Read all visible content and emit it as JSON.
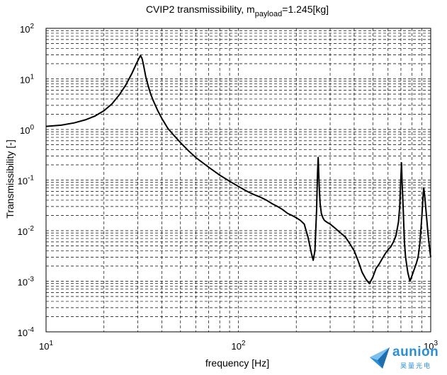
{
  "chart_data": {
    "type": "line",
    "title": "CVIP2 transmissibility, m",
    "title_sub": "payload",
    "title_suffix": "=1.245[kg]",
    "xlabel": "frequency [Hz]",
    "ylabel": "Transmissibility [-]",
    "x_scale": "log",
    "y_scale": "log",
    "xlim": [
      10,
      1000
    ],
    "ylim": [
      0.0001,
      100
    ],
    "grid": "on (major and minor, dashed)",
    "x_tick_labels": [
      {
        "base": "10",
        "exp": "1"
      },
      {
        "base": "10",
        "exp": "2"
      },
      {
        "base": "10",
        "exp": "3"
      }
    ],
    "y_tick_labels": [
      {
        "base": "10",
        "exp": "-4"
      },
      {
        "base": "10",
        "exp": "-3"
      },
      {
        "base": "10",
        "exp": "-2"
      },
      {
        "base": "10",
        "exp": "-1"
      },
      {
        "base": "10",
        "exp": "0"
      },
      {
        "base": "10",
        "exp": "1"
      },
      {
        "base": "10",
        "exp": "2"
      }
    ],
    "series": [
      {
        "color": "#000000",
        "x": [
          10,
          12,
          14,
          16,
          18,
          20,
          22,
          24,
          26,
          28,
          29.5,
          30.5,
          31,
          31.6,
          32.2,
          33,
          34,
          35,
          36,
          38,
          40,
          43,
          46,
          50,
          55,
          60,
          70,
          80,
          90,
          100,
          110,
          120,
          130,
          140,
          150,
          160,
          170,
          180,
          190,
          200,
          210,
          220,
          230,
          240,
          245,
          250,
          255,
          258,
          260,
          263,
          266,
          270,
          275,
          280,
          290,
          300,
          320,
          340,
          360,
          380,
          400,
          420,
          440,
          460,
          480,
          500,
          520,
          540,
          560,
          580,
          600,
          620,
          640,
          660,
          680,
          690,
          700,
          705,
          710,
          720,
          730,
          740,
          760,
          780,
          800,
          820,
          840,
          860,
          880,
          900,
          910,
          920,
          930,
          950,
          970,
          990,
          1000
        ],
        "y": [
          1.15,
          1.22,
          1.35,
          1.55,
          1.85,
          2.35,
          3.2,
          4.8,
          7.6,
          13.0,
          20.0,
          26.0,
          29.0,
          25.0,
          18.0,
          11.0,
          7.2,
          5.0,
          3.8,
          2.4,
          1.65,
          1.05,
          0.78,
          0.55,
          0.38,
          0.28,
          0.18,
          0.125,
          0.095,
          0.075,
          0.061,
          0.052,
          0.046,
          0.04,
          0.034,
          0.03,
          0.026,
          0.022,
          0.02,
          0.018,
          0.016,
          0.0135,
          0.0075,
          0.0035,
          0.0026,
          0.004,
          0.025,
          0.14,
          0.28,
          0.08,
          0.035,
          0.022,
          0.018,
          0.016,
          0.0145,
          0.0135,
          0.011,
          0.009,
          0.0075,
          0.0055,
          0.004,
          0.0025,
          0.0015,
          0.0011,
          0.0009,
          0.0012,
          0.0018,
          0.0022,
          0.0028,
          0.0035,
          0.0042,
          0.0048,
          0.006,
          0.008,
          0.015,
          0.03,
          0.12,
          0.22,
          0.09,
          0.025,
          0.006,
          0.003,
          0.0015,
          0.001,
          0.0013,
          0.0017,
          0.0022,
          0.003,
          0.006,
          0.02,
          0.04,
          0.07,
          0.05,
          0.02,
          0.008,
          0.004,
          0.003
        ]
      }
    ]
  },
  "logo": {
    "name": "aunion",
    "subtitle": "昊量光电",
    "brand_color": "#2a8fd6"
  }
}
